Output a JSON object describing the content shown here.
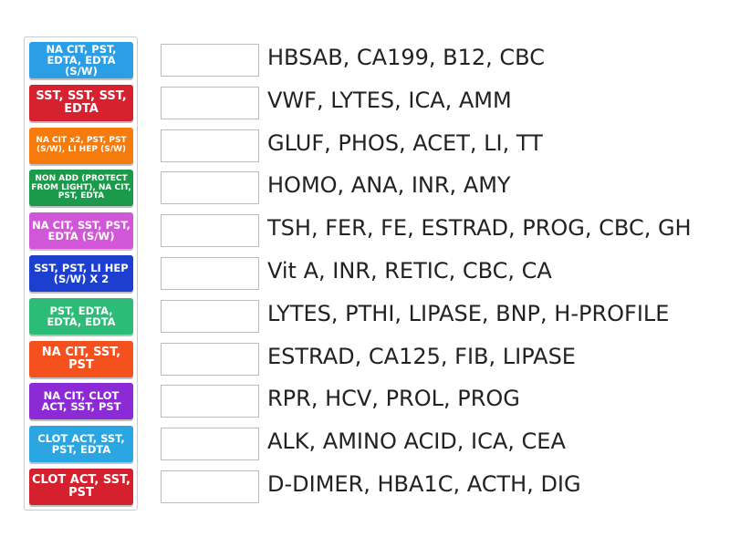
{
  "tiles": [
    {
      "label": "NA CIT, PST, EDTA, EDTA (S/W)",
      "color": "#2a9fe6"
    },
    {
      "label": "SST, SST, SST, EDTA",
      "color": "#d7212f"
    },
    {
      "label": "NA CIT x2, PST, PST (S/W), LI HEP (S/W)",
      "color": "#f57b0c"
    },
    {
      "label": "NON ADD (PROTECT FROM LIGHT), NA CIT, PST, EDTA",
      "color": "#1b9a4b"
    },
    {
      "label": "NA CIT, SST, PST, EDTA (S/W)",
      "color": "#d257d8"
    },
    {
      "label": "SST, PST, LI HEP (S/W) X 2",
      "color": "#1c3fd0"
    },
    {
      "label": "PST, EDTA, EDTA, EDTA",
      "color": "#2dbb78"
    },
    {
      "label": "NA CIT, SST, PST",
      "color": "#f4511e"
    },
    {
      "label": "NA CIT, CLOT ACT, SST, PST",
      "color": "#8c2bd6"
    },
    {
      "label": "CLOT ACT, SST, PST, EDTA",
      "color": "#2aa6e2"
    },
    {
      "label": "CLOT ACT, SST, PST",
      "color": "#d5202e"
    }
  ],
  "items": [
    "HBSAB, CA199, B12, CBC",
    "VWF, LYTES, ICA, AMM",
    "GLUF, PHOS, ACET, LI, TT",
    "HOMO, ANA, INR, AMY",
    "TSH, FER, FE, ESTRAD, PROG, CBC, GH",
    "Vit A, INR, RETIC, CBC, CA",
    "LYTES, PTHI, LIPASE, BNP, H-PROFILE",
    "ESTRAD, CA125, FIB, LIPASE",
    "RPR, HCV, PROL, PROG",
    "ALK, AMINO ACID, ICA, CEA",
    "D-DIMER, HBA1C, ACTH, DIG"
  ]
}
